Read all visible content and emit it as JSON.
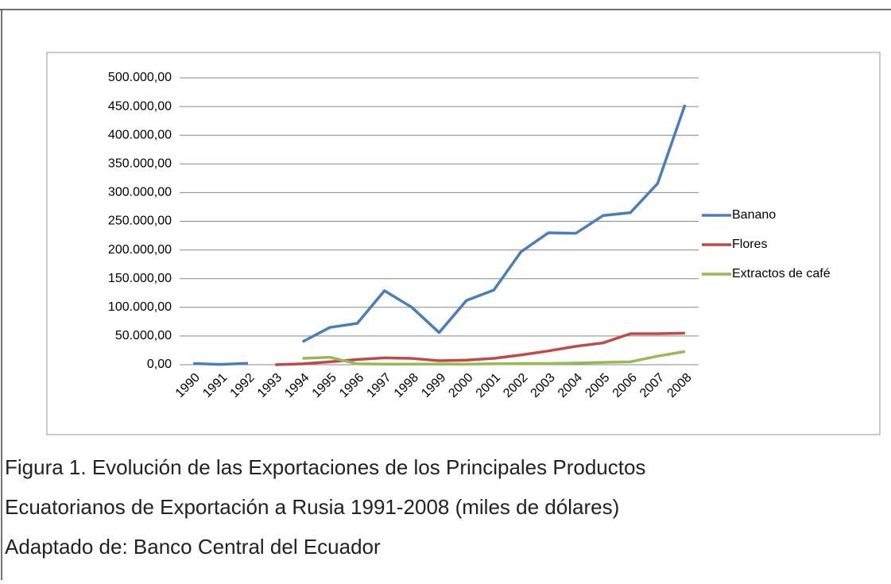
{
  "chart_data": {
    "type": "line",
    "categories": [
      "1990",
      "1991",
      "1992",
      "1993",
      "1994",
      "1995",
      "1996",
      "1997",
      "1998",
      "1999",
      "2000",
      "2001",
      "2002",
      "2003",
      "2004",
      "2005",
      "2006",
      "2007",
      "2008"
    ],
    "series": [
      {
        "name": "Banano",
        "color": "#4a7ebb",
        "values": [
          2000,
          500,
          2500,
          null,
          40000,
          65000,
          72000,
          129000,
          100000,
          56000,
          112000,
          130000,
          197000,
          230000,
          229000,
          260000,
          265000,
          316000,
          453000
        ]
      },
      {
        "name": "Flores",
        "color": "#be4b48",
        "values": [
          null,
          null,
          null,
          0,
          1500,
          5000,
          9000,
          12000,
          11000,
          7000,
          8000,
          11000,
          17000,
          24000,
          32000,
          38000,
          54000,
          54000,
          55000
        ]
      },
      {
        "name": "Extractos de café",
        "color": "#98b954",
        "values": [
          null,
          null,
          null,
          null,
          11000,
          13000,
          1500,
          1000,
          1000,
          1000,
          1000,
          1500,
          2000,
          2000,
          3000,
          4000,
          5000,
          15000,
          23000
        ]
      }
    ],
    "ylim": [
      0,
      500000
    ],
    "yticks": [
      {
        "value": 0,
        "label": "0,00"
      },
      {
        "value": 50000,
        "label": "50.000,00"
      },
      {
        "value": 100000,
        "label": "100.000,00"
      },
      {
        "value": 150000,
        "label": "150.000,00"
      },
      {
        "value": 200000,
        "label": "200.000,00"
      },
      {
        "value": 250000,
        "label": "250.000,00"
      },
      {
        "value": 300000,
        "label": "300.000,00"
      },
      {
        "value": 350000,
        "label": "350.000,00"
      },
      {
        "value": 400000,
        "label": "400.000,00"
      },
      {
        "value": 450000,
        "label": "450.000,00"
      },
      {
        "value": 500000,
        "label": "500.000,00"
      }
    ],
    "grid": true,
    "legend": "right"
  },
  "caption": [
    "Figura 1. Evolución de las Exportaciones de los Principales Productos",
    "Ecuatorianos de Exportación a Rusia  1991-2008 (miles de dólares)",
    "Adaptado de: Banco Central del Ecuador"
  ]
}
